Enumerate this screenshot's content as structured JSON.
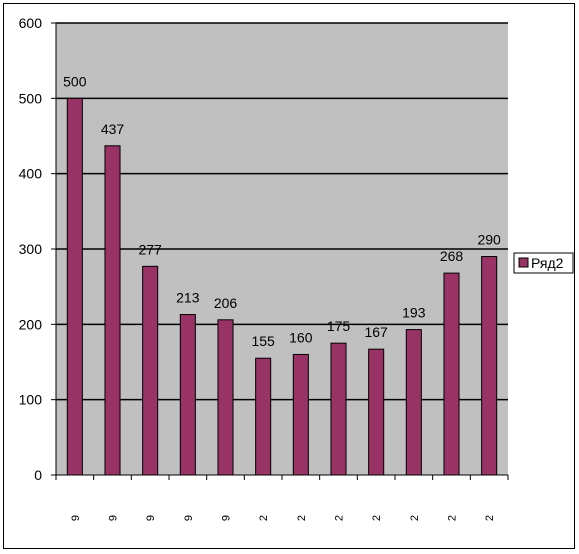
{
  "chart_data": {
    "type": "bar",
    "categories": [
      "9",
      "9",
      "9",
      "9",
      "9",
      "2",
      "2",
      "2",
      "2",
      "2",
      "2",
      "2"
    ],
    "series": [
      {
        "name": "Ряд2",
        "values": [
          500,
          437,
          277,
          213,
          206,
          155,
          160,
          175,
          167,
          193,
          268,
          290
        ]
      }
    ],
    "title": "",
    "xlabel": "",
    "ylabel": "",
    "ylim": [
      0,
      600
    ],
    "yticks": [
      0,
      100,
      200,
      300,
      400,
      500,
      600
    ],
    "grid": true,
    "legend_position": "right",
    "data_labels": true,
    "colors": {
      "bar_fill": "#993366",
      "bar_stroke": "#000000",
      "plot_background": "#c0c0c0",
      "gridline": "#000000"
    }
  }
}
